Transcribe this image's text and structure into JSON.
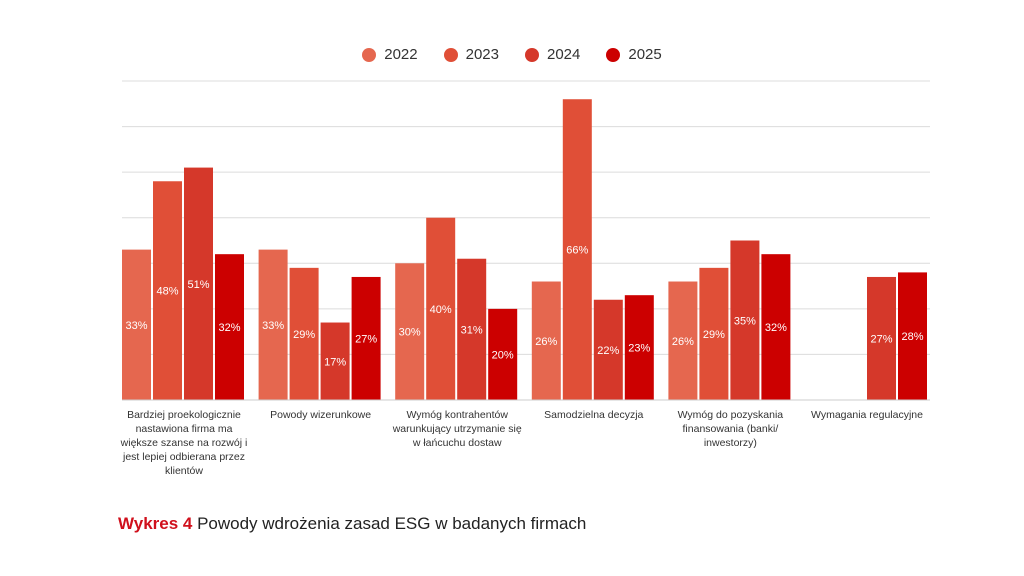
{
  "chart_data": {
    "type": "bar",
    "categories": [
      "Bardziej proekologicznie nastawiona firma ma większe szanse na rozwój i jest lepiej odbierana przez klientów",
      "Powody wizerunkowe",
      "Wymóg kontrahentów warunkujący utrzymanie się w łańcuchu dostaw",
      "Samodzielna decyzja",
      "Wymóg do pozyskania finansowania (banki/ inwestorzy)",
      "Wymagania regulacyjne"
    ],
    "series": [
      {
        "name": "2022",
        "color": "#e5674f",
        "values": [
          33,
          33,
          30,
          26,
          26,
          null
        ]
      },
      {
        "name": "2023",
        "color": "#e04f37",
        "values": [
          48,
          29,
          40,
          66,
          29,
          null
        ]
      },
      {
        "name": "2024",
        "color": "#d5382a",
        "values": [
          51,
          17,
          31,
          22,
          35,
          27
        ]
      },
      {
        "name": "2025",
        "color": "#cc0000",
        "values": [
          32,
          27,
          20,
          23,
          32,
          28
        ]
      }
    ],
    "value_suffix": "%",
    "ylim": [
      0,
      70
    ],
    "grid": true,
    "legend": "top-center"
  },
  "caption": {
    "prefix": "Wykres 4",
    "text": " Powody wdrożenia zasad ESG w badanych firmach"
  }
}
